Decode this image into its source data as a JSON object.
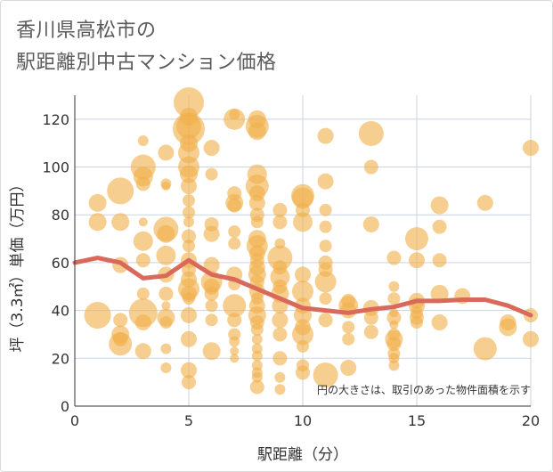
{
  "page": {
    "title_line1": "香川県高松市の",
    "title_line2": "駅距離別中古マンション価格"
  },
  "chart_data": {
    "type": "scatter",
    "xlabel": "駅距離（分）",
    "ylabel": "坪（3.3㎡）単価（万円）",
    "xlim": [
      0,
      20
    ],
    "ylim": [
      0,
      130
    ],
    "xticks": [
      0,
      5,
      10,
      15,
      20
    ],
    "yticks": [
      0,
      20,
      40,
      60,
      80,
      100,
      120
    ],
    "grid": true,
    "note": "円の大きさは、取引のあった物件面積を示す",
    "colors": {
      "bubble": "#f0b04a",
      "trend": "#d9695a",
      "grid": "#c9d3e2",
      "axis": "#333333"
    },
    "series": [
      {
        "type": "scatter",
        "points": [
          {
            "x": 1,
            "y": 85,
            "s": 10
          },
          {
            "x": 1,
            "y": 77,
            "s": 10
          },
          {
            "x": 1,
            "y": 38,
            "s": 15
          },
          {
            "x": 2,
            "y": 90,
            "s": 15
          },
          {
            "x": 2,
            "y": 77,
            "s": 10
          },
          {
            "x": 2,
            "y": 59,
            "s": 9
          },
          {
            "x": 2,
            "y": 36,
            "s": 8
          },
          {
            "x": 2,
            "y": 30,
            "s": 10
          },
          {
            "x": 2,
            "y": 28,
            "s": 8
          },
          {
            "x": 2,
            "y": 26,
            "s": 13
          },
          {
            "x": 3,
            "y": 111,
            "s": 6
          },
          {
            "x": 3,
            "y": 100,
            "s": 14
          },
          {
            "x": 3,
            "y": 96,
            "s": 11
          },
          {
            "x": 3,
            "y": 93,
            "s": 8
          },
          {
            "x": 3,
            "y": 77,
            "s": 5
          },
          {
            "x": 3,
            "y": 69,
            "s": 11
          },
          {
            "x": 3,
            "y": 61,
            "s": 8
          },
          {
            "x": 3,
            "y": 47,
            "s": 7
          },
          {
            "x": 3,
            "y": 39,
            "s": 16
          },
          {
            "x": 3,
            "y": 35,
            "s": 9
          },
          {
            "x": 3,
            "y": 23,
            "s": 9
          },
          {
            "x": 4,
            "y": 106,
            "s": 9
          },
          {
            "x": 4,
            "y": 93,
            "s": 6
          },
          {
            "x": 4,
            "y": 92,
            "s": 5
          },
          {
            "x": 4,
            "y": 74,
            "s": 14
          },
          {
            "x": 4,
            "y": 72,
            "s": 10
          },
          {
            "x": 4,
            "y": 63,
            "s": 11
          },
          {
            "x": 4,
            "y": 55,
            "s": 9
          },
          {
            "x": 4,
            "y": 47,
            "s": 8
          },
          {
            "x": 4,
            "y": 42,
            "s": 5
          },
          {
            "x": 4,
            "y": 37,
            "s": 10
          },
          {
            "x": 4,
            "y": 35,
            "s": 7
          },
          {
            "x": 4,
            "y": 24,
            "s": 6
          },
          {
            "x": 4,
            "y": 16,
            "s": 6
          },
          {
            "x": 5,
            "y": 127,
            "s": 17
          },
          {
            "x": 5,
            "y": 121,
            "s": 10
          },
          {
            "x": 5,
            "y": 117,
            "s": 14
          },
          {
            "x": 5,
            "y": 116,
            "s": 18
          },
          {
            "x": 5,
            "y": 110,
            "s": 10
          },
          {
            "x": 5,
            "y": 106,
            "s": 12
          },
          {
            "x": 5,
            "y": 100,
            "s": 12
          },
          {
            "x": 5,
            "y": 97,
            "s": 10
          },
          {
            "x": 5,
            "y": 92,
            "s": 9
          },
          {
            "x": 5,
            "y": 86,
            "s": 7
          },
          {
            "x": 5,
            "y": 81,
            "s": 7
          },
          {
            "x": 5,
            "y": 77,
            "s": 6
          },
          {
            "x": 5,
            "y": 71,
            "s": 8
          },
          {
            "x": 5,
            "y": 67,
            "s": 7
          },
          {
            "x": 5,
            "y": 61,
            "s": 9
          },
          {
            "x": 5,
            "y": 57,
            "s": 8
          },
          {
            "x": 5,
            "y": 53,
            "s": 9
          },
          {
            "x": 5,
            "y": 49,
            "s": 12
          },
          {
            "x": 5,
            "y": 47,
            "s": 9
          },
          {
            "x": 5,
            "y": 45,
            "s": 7
          },
          {
            "x": 5,
            "y": 38,
            "s": 9
          },
          {
            "x": 5,
            "y": 28,
            "s": 9
          },
          {
            "x": 5,
            "y": 15,
            "s": 9
          },
          {
            "x": 5,
            "y": 10,
            "s": 8
          },
          {
            "x": 6,
            "y": 108,
            "s": 9
          },
          {
            "x": 6,
            "y": 97,
            "s": 7
          },
          {
            "x": 6,
            "y": 76,
            "s": 8
          },
          {
            "x": 6,
            "y": 72,
            "s": 9
          },
          {
            "x": 6,
            "y": 59,
            "s": 9
          },
          {
            "x": 6,
            "y": 52,
            "s": 12
          },
          {
            "x": 6,
            "y": 50,
            "s": 9
          },
          {
            "x": 6,
            "y": 47,
            "s": 8
          },
          {
            "x": 6,
            "y": 42,
            "s": 7
          },
          {
            "x": 6,
            "y": 36,
            "s": 7
          },
          {
            "x": 6,
            "y": 23,
            "s": 10
          },
          {
            "x": 7,
            "y": 122,
            "s": 6
          },
          {
            "x": 7,
            "y": 120,
            "s": 12
          },
          {
            "x": 7,
            "y": 89,
            "s": 8
          },
          {
            "x": 7,
            "y": 85,
            "s": 10
          },
          {
            "x": 7,
            "y": 84,
            "s": 8
          },
          {
            "x": 7,
            "y": 73,
            "s": 7
          },
          {
            "x": 7,
            "y": 68,
            "s": 7
          },
          {
            "x": 7,
            "y": 55,
            "s": 9
          },
          {
            "x": 7,
            "y": 51,
            "s": 7
          },
          {
            "x": 7,
            "y": 42,
            "s": 13
          },
          {
            "x": 7,
            "y": 36,
            "s": 8
          },
          {
            "x": 7,
            "y": 30,
            "s": 7
          },
          {
            "x": 7,
            "y": 27,
            "s": 6
          },
          {
            "x": 7,
            "y": 23,
            "s": 5
          },
          {
            "x": 7,
            "y": 20,
            "s": 5
          },
          {
            "x": 8,
            "y": 120,
            "s": 10
          },
          {
            "x": 8,
            "y": 117,
            "s": 13
          },
          {
            "x": 8,
            "y": 115,
            "s": 10
          },
          {
            "x": 8,
            "y": 97,
            "s": 11
          },
          {
            "x": 8,
            "y": 92,
            "s": 13
          },
          {
            "x": 8,
            "y": 89,
            "s": 9
          },
          {
            "x": 8,
            "y": 85,
            "s": 9
          },
          {
            "x": 8,
            "y": 80,
            "s": 8
          },
          {
            "x": 8,
            "y": 77,
            "s": 7
          },
          {
            "x": 8,
            "y": 70,
            "s": 10
          },
          {
            "x": 8,
            "y": 67,
            "s": 12
          },
          {
            "x": 8,
            "y": 64,
            "s": 9
          },
          {
            "x": 8,
            "y": 61,
            "s": 8
          },
          {
            "x": 8,
            "y": 58,
            "s": 9
          },
          {
            "x": 8,
            "y": 55,
            "s": 10
          },
          {
            "x": 8,
            "y": 52,
            "s": 8
          },
          {
            "x": 8,
            "y": 48,
            "s": 9
          },
          {
            "x": 8,
            "y": 45,
            "s": 7
          },
          {
            "x": 8,
            "y": 42,
            "s": 9
          },
          {
            "x": 8,
            "y": 38,
            "s": 10
          },
          {
            "x": 8,
            "y": 35,
            "s": 8
          },
          {
            "x": 8,
            "y": 32,
            "s": 7
          },
          {
            "x": 8,
            "y": 28,
            "s": 6
          },
          {
            "x": 8,
            "y": 24,
            "s": 6
          },
          {
            "x": 8,
            "y": 21,
            "s": 6
          },
          {
            "x": 8,
            "y": 17,
            "s": 6
          },
          {
            "x": 8,
            "y": 14,
            "s": 6
          },
          {
            "x": 8,
            "y": 12,
            "s": 6
          },
          {
            "x": 8,
            "y": 8,
            "s": 8
          },
          {
            "x": 9,
            "y": 82,
            "s": 8
          },
          {
            "x": 9,
            "y": 77,
            "s": 8
          },
          {
            "x": 9,
            "y": 68,
            "s": 6
          },
          {
            "x": 9,
            "y": 62,
            "s": 14
          },
          {
            "x": 9,
            "y": 58,
            "s": 8
          },
          {
            "x": 9,
            "y": 54,
            "s": 11
          },
          {
            "x": 9,
            "y": 50,
            "s": 8
          },
          {
            "x": 9,
            "y": 47,
            "s": 10
          },
          {
            "x": 9,
            "y": 42,
            "s": 9
          },
          {
            "x": 9,
            "y": 36,
            "s": 9
          },
          {
            "x": 9,
            "y": 30,
            "s": 8
          },
          {
            "x": 9,
            "y": 20,
            "s": 8
          },
          {
            "x": 9,
            "y": 12,
            "s": 6
          },
          {
            "x": 9,
            "y": 7,
            "s": 6
          },
          {
            "x": 10,
            "y": 88,
            "s": 13
          },
          {
            "x": 10,
            "y": 87,
            "s": 12
          },
          {
            "x": 10,
            "y": 82,
            "s": 8
          },
          {
            "x": 10,
            "y": 77,
            "s": 11
          },
          {
            "x": 10,
            "y": 55,
            "s": 9
          },
          {
            "x": 10,
            "y": 48,
            "s": 12
          },
          {
            "x": 10,
            "y": 42,
            "s": 9
          },
          {
            "x": 10,
            "y": 38,
            "s": 10
          },
          {
            "x": 10,
            "y": 33,
            "s": 9
          },
          {
            "x": 10,
            "y": 30,
            "s": 12
          },
          {
            "x": 10,
            "y": 25,
            "s": 7
          },
          {
            "x": 10,
            "y": 17,
            "s": 7
          },
          {
            "x": 10,
            "y": 14,
            "s": 8
          },
          {
            "x": 11,
            "y": 113,
            "s": 9
          },
          {
            "x": 11,
            "y": 94,
            "s": 9
          },
          {
            "x": 11,
            "y": 82,
            "s": 7
          },
          {
            "x": 11,
            "y": 75,
            "s": 7
          },
          {
            "x": 11,
            "y": 67,
            "s": 7
          },
          {
            "x": 11,
            "y": 60,
            "s": 8
          },
          {
            "x": 11,
            "y": 57,
            "s": 8
          },
          {
            "x": 11,
            "y": 52,
            "s": 12
          },
          {
            "x": 11,
            "y": 45,
            "s": 7
          },
          {
            "x": 11,
            "y": 36,
            "s": 8
          },
          {
            "x": 11,
            "y": 13,
            "s": 14
          },
          {
            "x": 12,
            "y": 44,
            "s": 8
          },
          {
            "x": 12,
            "y": 42,
            "s": 11
          },
          {
            "x": 12,
            "y": 40,
            "s": 9
          },
          {
            "x": 12,
            "y": 33,
            "s": 7
          },
          {
            "x": 12,
            "y": 28,
            "s": 7
          },
          {
            "x": 12,
            "y": 16,
            "s": 9
          },
          {
            "x": 13,
            "y": 114,
            "s": 14
          },
          {
            "x": 13,
            "y": 100,
            "s": 8
          },
          {
            "x": 13,
            "y": 76,
            "s": 9
          },
          {
            "x": 13,
            "y": 41,
            "s": 9
          },
          {
            "x": 13,
            "y": 37,
            "s": 8
          },
          {
            "x": 13,
            "y": 31,
            "s": 8
          },
          {
            "x": 14,
            "y": 62,
            "s": 8
          },
          {
            "x": 14,
            "y": 50,
            "s": 6
          },
          {
            "x": 14,
            "y": 45,
            "s": 7
          },
          {
            "x": 14,
            "y": 39,
            "s": 5
          },
          {
            "x": 14,
            "y": 37,
            "s": 8
          },
          {
            "x": 14,
            "y": 34,
            "s": 5
          },
          {
            "x": 14,
            "y": 30,
            "s": 7
          },
          {
            "x": 14,
            "y": 28,
            "s": 10
          },
          {
            "x": 14,
            "y": 26,
            "s": 8
          },
          {
            "x": 14,
            "y": 22,
            "s": 7
          },
          {
            "x": 14,
            "y": 20,
            "s": 6
          },
          {
            "x": 14,
            "y": 17,
            "s": 6
          },
          {
            "x": 15,
            "y": 70,
            "s": 13
          },
          {
            "x": 15,
            "y": 61,
            "s": 9
          },
          {
            "x": 15,
            "y": 44,
            "s": 9
          },
          {
            "x": 15,
            "y": 42,
            "s": 9
          },
          {
            "x": 15,
            "y": 39,
            "s": 7
          },
          {
            "x": 15,
            "y": 37,
            "s": 8
          },
          {
            "x": 15,
            "y": 35,
            "s": 7
          },
          {
            "x": 16,
            "y": 84,
            "s": 10
          },
          {
            "x": 16,
            "y": 75,
            "s": 8
          },
          {
            "x": 16,
            "y": 61,
            "s": 8
          },
          {
            "x": 16,
            "y": 47,
            "s": 10
          },
          {
            "x": 16,
            "y": 35,
            "s": 9
          },
          {
            "x": 17,
            "y": 46,
            "s": 9
          },
          {
            "x": 18,
            "y": 85,
            "s": 9
          },
          {
            "x": 18,
            "y": 24,
            "s": 13
          },
          {
            "x": 19,
            "y": 35,
            "s": 9
          },
          {
            "x": 19,
            "y": 33,
            "s": 10
          },
          {
            "x": 20,
            "y": 108,
            "s": 9
          },
          {
            "x": 20,
            "y": 38,
            "s": 8
          },
          {
            "x": 20,
            "y": 28,
            "s": 9
          }
        ]
      },
      {
        "type": "line",
        "x": [
          0,
          1,
          2,
          3,
          4,
          5,
          6,
          7,
          8,
          9,
          10,
          11,
          12,
          13,
          14,
          15,
          16,
          17,
          18,
          19,
          20
        ],
        "values": [
          60,
          62,
          60,
          53.5,
          54.5,
          61,
          55,
          53,
          49,
          45,
          41,
          40,
          39,
          40.5,
          41.5,
          44,
          44,
          44.5,
          44.5,
          42,
          38
        ]
      }
    ]
  }
}
